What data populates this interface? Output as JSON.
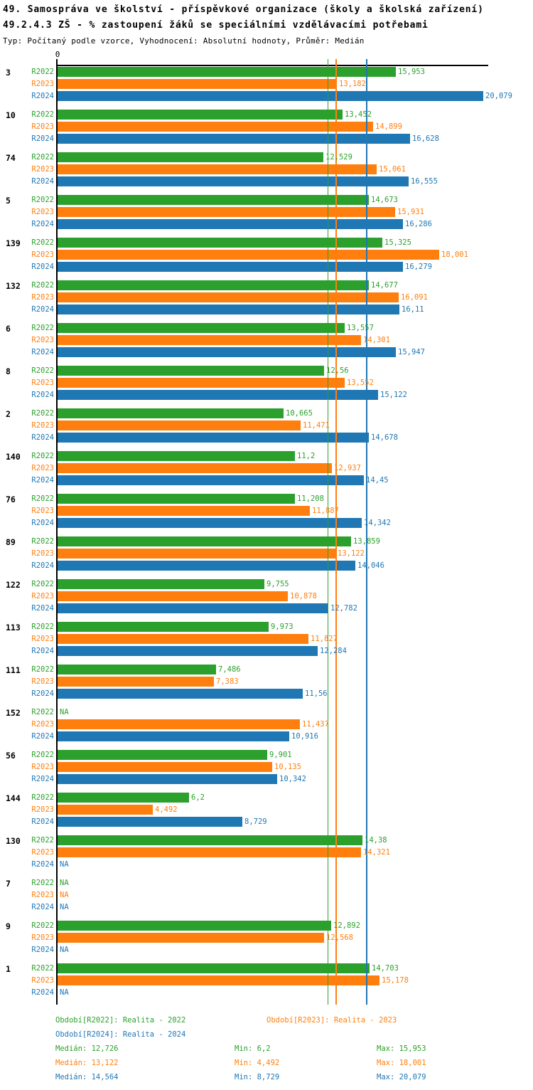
{
  "header": {
    "title_line1": "49. Samospráva ve školství - příspěvkové organizace (školy a školská zařízení)",
    "title_line2": "49.2.4.3 ZŠ - % zastoupení žáků se speciálními vzdělávacími potřebami",
    "meta_line": "Typ: Počítaný podle vzorce, Vyhodnocení: Absolutní hodnoty, Průměr: Medián"
  },
  "chart_data": {
    "type": "bar",
    "orientation": "horizontal",
    "value_locale": "cs (decimal comma)",
    "axis": {
      "origin_tick_label": "0",
      "x_min": 0,
      "x_max_shown": 20.079,
      "grid": false
    },
    "na_label": "NA",
    "series": [
      {
        "name": "R2022",
        "color": "#2ca02c",
        "median": 12.726
      },
      {
        "name": "R2023",
        "color": "#ff7f0e",
        "median": 13.122
      },
      {
        "name": "R2024",
        "color": "#1f77b4",
        "median": 14.564
      }
    ],
    "groups": [
      {
        "label": "3",
        "values": [
          "15,953",
          "13,182",
          "20,079"
        ]
      },
      {
        "label": "10",
        "values": [
          "13,452",
          "14,899",
          "16,628"
        ]
      },
      {
        "label": "74",
        "values": [
          "12,529",
          "15,061",
          "16,555"
        ]
      },
      {
        "label": "5",
        "values": [
          "14,673",
          "15,931",
          "16,286"
        ]
      },
      {
        "label": "139",
        "values": [
          "15,325",
          "18,001",
          "16,279"
        ]
      },
      {
        "label": "132",
        "values": [
          "14,677",
          "16,091",
          "16,11"
        ]
      },
      {
        "label": "6",
        "values": [
          "13,557",
          "14,301",
          "15,947"
        ]
      },
      {
        "label": "8",
        "values": [
          "12,56",
          "13,552",
          "15,122"
        ]
      },
      {
        "label": "2",
        "values": [
          "10,665",
          "11,471",
          "14,678"
        ]
      },
      {
        "label": "140",
        "values": [
          "11,2",
          "12,937",
          "14,45"
        ]
      },
      {
        "label": "76",
        "values": [
          "11,208",
          "11,887",
          "14,342"
        ]
      },
      {
        "label": "89",
        "values": [
          "13,859",
          "13,122",
          "14,046"
        ]
      },
      {
        "label": "122",
        "values": [
          "9,755",
          "10,878",
          "12,782"
        ]
      },
      {
        "label": "113",
        "values": [
          "9,973",
          "11,827",
          "12,284"
        ]
      },
      {
        "label": "111",
        "values": [
          "7,486",
          "7,383",
          "11,56"
        ]
      },
      {
        "label": "152",
        "values": [
          "NA",
          "11,437",
          "10,916"
        ]
      },
      {
        "label": "56",
        "values": [
          "9,901",
          "10,135",
          "10,342"
        ]
      },
      {
        "label": "144",
        "values": [
          "6,2",
          "4,492",
          "8,729"
        ]
      },
      {
        "label": "130",
        "values": [
          "14,38",
          "14,321",
          "NA"
        ]
      },
      {
        "label": "7",
        "values": [
          "NA",
          "NA",
          "NA"
        ]
      },
      {
        "label": "9",
        "values": [
          "12,892",
          "12,568",
          "NA"
        ]
      },
      {
        "label": "1",
        "values": [
          "14,703",
          "15,178",
          "NA"
        ]
      }
    ]
  },
  "footer": {
    "legend": [
      {
        "text": "Období[R2022]: Realita - 2022",
        "series": 0
      },
      {
        "text": "Období[R2023]: Realita - 2023",
        "series": 1
      },
      {
        "text": "Období[R2024]: Realita - 2024",
        "series": 2
      }
    ],
    "stats": [
      {
        "series": 0,
        "median": "Medián: 12,726",
        "min": "Min: 6,2",
        "max": "Max: 15,953"
      },
      {
        "series": 1,
        "median": "Medián: 13,122",
        "min": "Min: 4,492",
        "max": "Max: 18,001"
      },
      {
        "series": 2,
        "median": "Medián: 14,564",
        "min": "Min: 8,729",
        "max": "Max: 20,079"
      }
    ]
  }
}
